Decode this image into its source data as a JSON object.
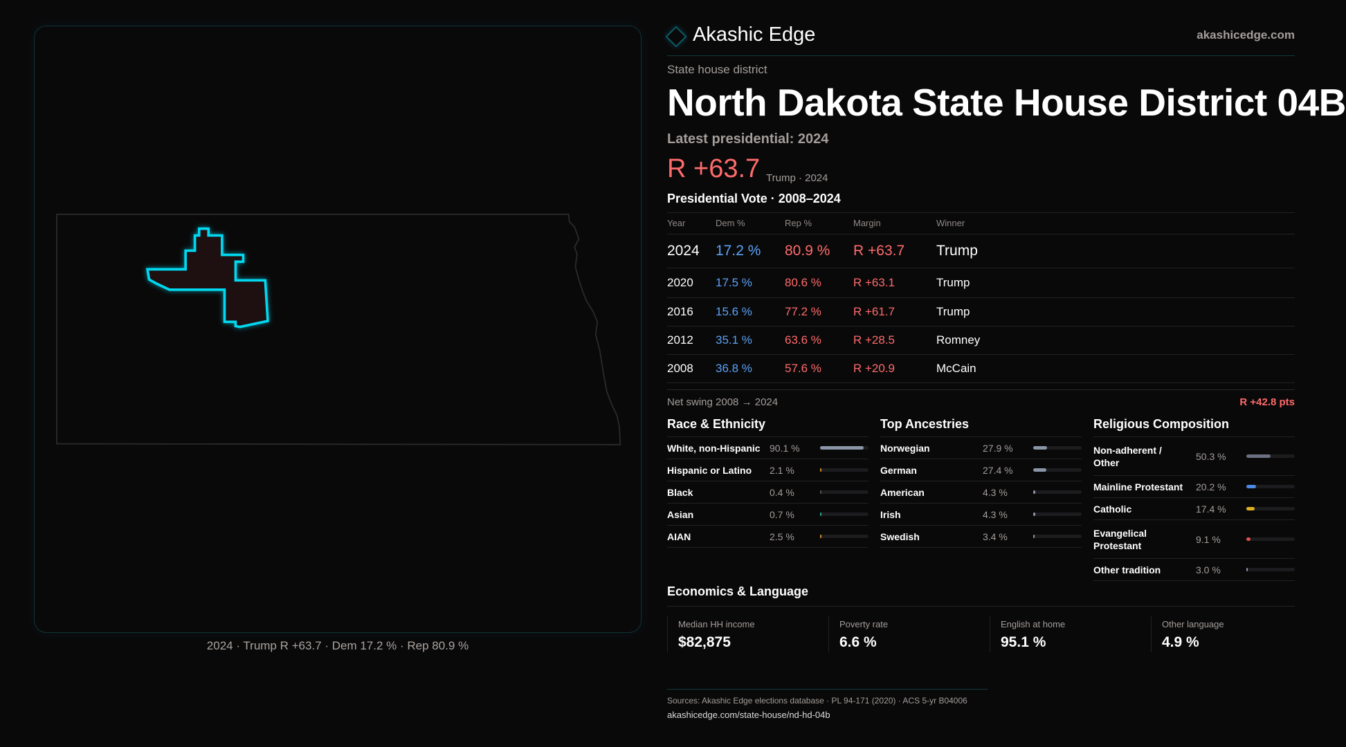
{
  "map": {
    "caption": "2024 · Trump R +63.7 · Dem 17.2 % · Rep 80.9 %",
    "highlight_color": "#00d8f0"
  },
  "header": {
    "brand": "Akashic Edge",
    "site": "akashicedge.com"
  },
  "kicker": "State house district",
  "title": "North Dakota State House District 04B",
  "latest_label": "Latest presidential: 2024",
  "latest_margin": "R +63.7",
  "latest_sub": "Trump · 2024",
  "table": {
    "title": "Presidential Vote · 2008–2024",
    "headers": [
      "Year",
      "Dem %",
      "Rep %",
      "Margin",
      "Winner"
    ],
    "rows": [
      [
        "2024",
        "17.2 %",
        "80.9 %",
        "R +63.7",
        "Trump"
      ],
      [
        "2020",
        "17.5 %",
        "80.6 %",
        "R +63.1",
        "Trump"
      ],
      [
        "2016",
        "15.6 %",
        "77.2 %",
        "R +61.7",
        "Trump"
      ],
      [
        "2012",
        "35.1 %",
        "63.6 %",
        "R +28.5",
        "Romney"
      ],
      [
        "2008",
        "36.8 %",
        "57.6 %",
        "R +20.9",
        "McCain"
      ]
    ],
    "swing_label": "Net swing 2008 → 2024",
    "swing_value": "R +42.8 pts"
  },
  "race": {
    "title": "Race & Ethnicity",
    "items": [
      {
        "label": "White, non-Hispanic",
        "value": "90.1 %",
        "pct": 90.1,
        "color": "#8a96a8"
      },
      {
        "label": "Hispanic or Latino",
        "value": "2.1 %",
        "pct": 2.1,
        "color": "#d0892a"
      },
      {
        "label": "Black",
        "value": "0.4 %",
        "pct": 0.4,
        "color": "#555"
      },
      {
        "label": "Asian",
        "value": "0.7 %",
        "pct": 0.7,
        "color": "#2aa88a"
      },
      {
        "label": "AIAN",
        "value": "2.5 %",
        "pct": 2.5,
        "color": "#d0892a"
      }
    ]
  },
  "ancestry": {
    "title": "Top Ancestries",
    "items": [
      {
        "label": "Norwegian",
        "value": "27.9 %",
        "pct": 27.9,
        "color": "#8a96a8"
      },
      {
        "label": "German",
        "value": "27.4 %",
        "pct": 27.4,
        "color": "#8a96a8"
      },
      {
        "label": "American",
        "value": "4.3 %",
        "pct": 4.3,
        "color": "#8a96a8"
      },
      {
        "label": "Irish",
        "value": "4.3 %",
        "pct": 4.3,
        "color": "#8a96a8"
      },
      {
        "label": "Swedish",
        "value": "3.4 %",
        "pct": 3.4,
        "color": "#8a96a8"
      }
    ]
  },
  "religion": {
    "title": "Religious Composition",
    "items": [
      {
        "label": "Non-adherent / Other",
        "value": "50.3 %",
        "pct": 50.3,
        "color": "#6a7080"
      },
      {
        "label": "Mainline Protestant",
        "value": "20.2 %",
        "pct": 20.2,
        "color": "#4a8ae0"
      },
      {
        "label": "Catholic",
        "value": "17.4 %",
        "pct": 17.4,
        "color": "#e0b020"
      },
      {
        "label": "Evangelical Protestant",
        "value": "9.1 %",
        "pct": 9.1,
        "color": "#e05050"
      },
      {
        "label": "Other tradition",
        "value": "3.0 %",
        "pct": 3.0,
        "color": "#8a96a8"
      }
    ]
  },
  "economics": {
    "title": "Economics & Language",
    "items": [
      {
        "label": "Median HH income",
        "value": "$82,875"
      },
      {
        "label": "Poverty rate",
        "value": "6.6 %"
      },
      {
        "label": "English at home",
        "value": "95.1 %"
      },
      {
        "label": "Other language",
        "value": "4.9 %"
      }
    ]
  },
  "footer": {
    "sources": "Sources: Akashic Edge elections database · PL 94-171 (2020) · ACS 5-yr B04006",
    "url": "akashicedge.com/state-house/nd-hd-04b"
  }
}
